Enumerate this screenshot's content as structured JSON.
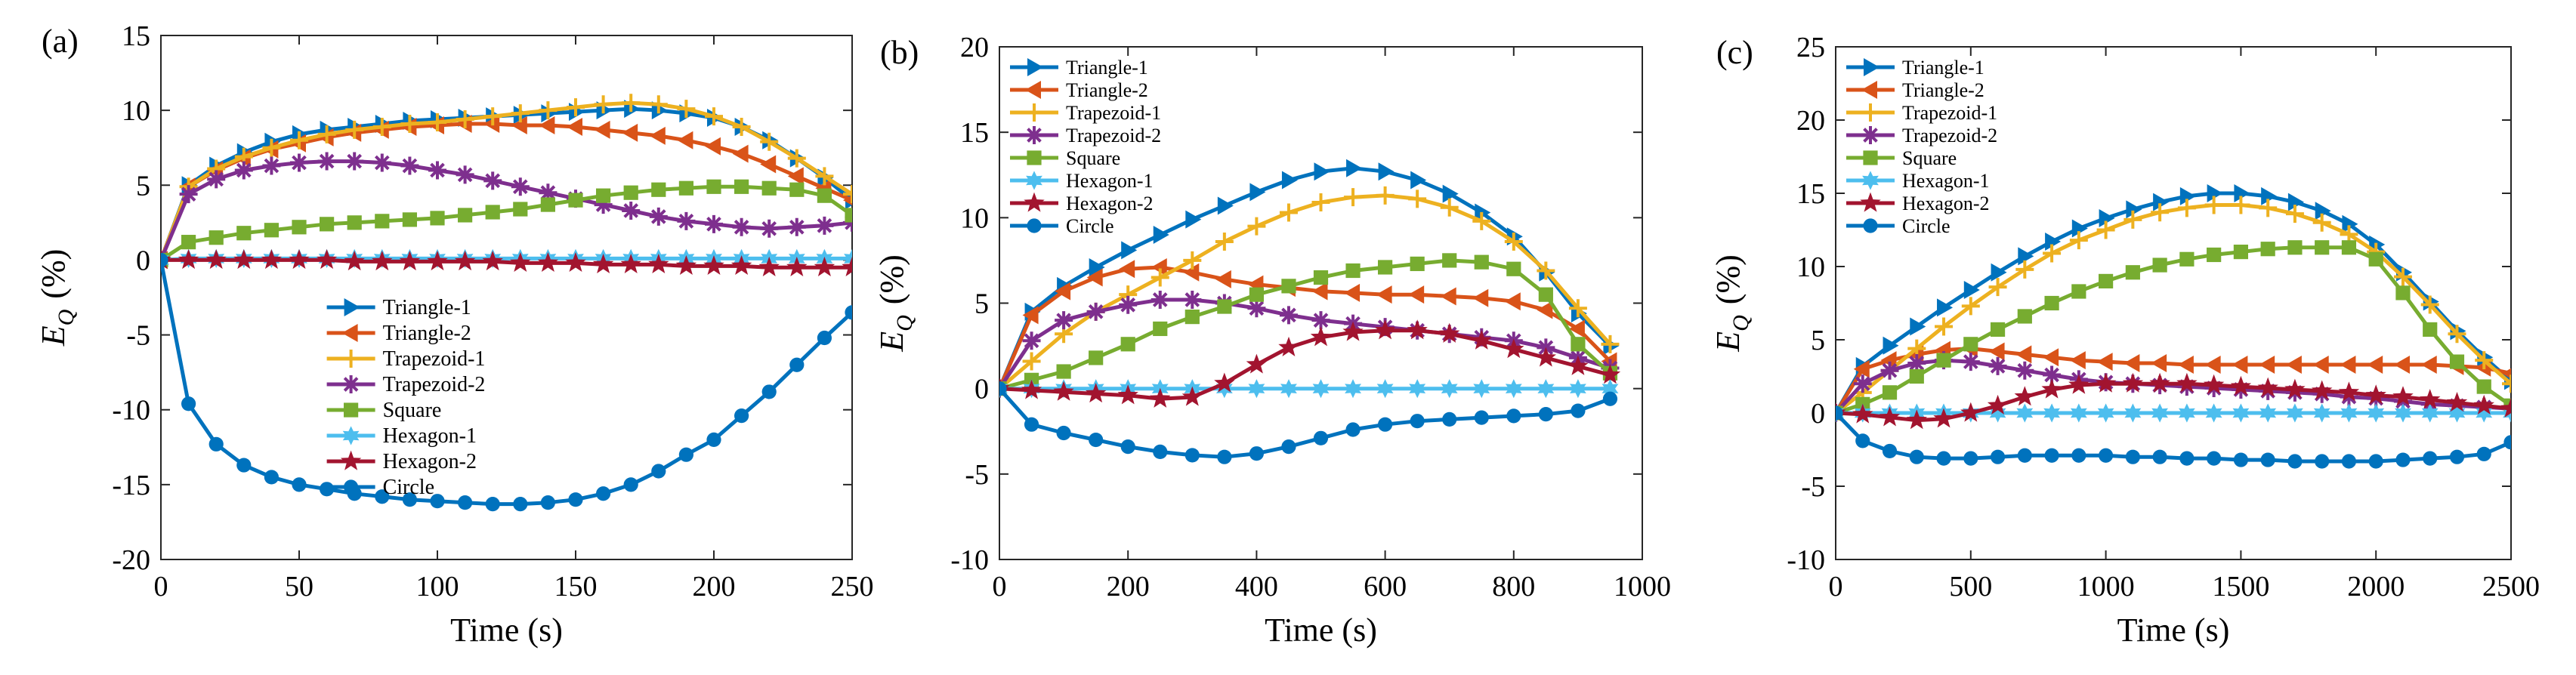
{
  "figure": {
    "series_styles": [
      {
        "name": "Triangle-1",
        "color": "#0072BD",
        "marker": "tri-right"
      },
      {
        "name": "Triangle-2",
        "color": "#D95319",
        "marker": "tri-left"
      },
      {
        "name": "Trapezoid-1",
        "color": "#EDB120",
        "marker": "plus"
      },
      {
        "name": "Trapezoid-2",
        "color": "#7E2F8E",
        "marker": "asterisk"
      },
      {
        "name": "Square",
        "color": "#77AC30",
        "marker": "square"
      },
      {
        "name": "Hexagon-1",
        "color": "#4DBEEE",
        "marker": "hexagram"
      },
      {
        "name": "Hexagon-2",
        "color": "#A2142F",
        "marker": "pentagram"
      },
      {
        "name": "Circle",
        "color": "#0072BD",
        "marker": "circle"
      }
    ]
  },
  "chart_data": [
    {
      "type": "line",
      "panel_label": "(a)",
      "xlabel": "Time (s)",
      "ylabel_main": "E",
      "ylabel_sub": "Q",
      "ylabel_unit": "(%)",
      "xlim": [
        0,
        250
      ],
      "ylim": [
        -20,
        15
      ],
      "xticks": [
        0,
        50,
        100,
        150,
        200,
        250
      ],
      "yticks": [
        -20,
        -15,
        -10,
        -5,
        0,
        5,
        10,
        15
      ],
      "legend_position": "center",
      "x": [
        0,
        10,
        20,
        30,
        40,
        50,
        60,
        70,
        80,
        90,
        100,
        110,
        120,
        130,
        140,
        150,
        160,
        170,
        180,
        190,
        200,
        210,
        220,
        230,
        240,
        250
      ],
      "series": [
        {
          "name": "Triangle-1",
          "values": [
            0,
            5.0,
            6.3,
            7.2,
            7.9,
            8.4,
            8.7,
            8.9,
            9.1,
            9.3,
            9.4,
            9.5,
            9.6,
            9.7,
            9.8,
            9.9,
            10.0,
            10.1,
            10.0,
            9.8,
            9.5,
            8.9,
            8.0,
            6.8,
            5.5,
            4.0
          ]
        },
        {
          "name": "Triangle-2",
          "values": [
            0,
            4.9,
            6.0,
            6.8,
            7.4,
            7.8,
            8.2,
            8.5,
            8.7,
            8.9,
            9.0,
            9.1,
            9.1,
            9.0,
            9.0,
            8.9,
            8.7,
            8.5,
            8.3,
            8.0,
            7.6,
            7.1,
            6.4,
            5.6,
            4.8,
            4.0
          ]
        },
        {
          "name": "Trapezoid-1",
          "values": [
            0,
            4.9,
            6.1,
            6.9,
            7.5,
            8.0,
            8.4,
            8.7,
            8.9,
            9.1,
            9.2,
            9.4,
            9.6,
            9.8,
            10.0,
            10.2,
            10.4,
            10.5,
            10.4,
            10.1,
            9.6,
            8.9,
            7.9,
            6.8,
            5.6,
            4.4
          ]
        },
        {
          "name": "Trapezoid-2",
          "values": [
            0,
            4.4,
            5.4,
            6.0,
            6.3,
            6.5,
            6.6,
            6.6,
            6.5,
            6.3,
            6.0,
            5.7,
            5.3,
            4.9,
            4.5,
            4.1,
            3.7,
            3.3,
            2.9,
            2.6,
            2.4,
            2.2,
            2.1,
            2.2,
            2.3,
            2.5
          ]
        },
        {
          "name": "Square",
          "values": [
            0,
            1.2,
            1.5,
            1.8,
            2.0,
            2.2,
            2.4,
            2.5,
            2.6,
            2.7,
            2.8,
            3.0,
            3.2,
            3.4,
            3.7,
            4.0,
            4.3,
            4.5,
            4.7,
            4.8,
            4.9,
            4.9,
            4.8,
            4.7,
            4.3,
            3.0
          ]
        },
        {
          "name": "Hexagon-1",
          "values": [
            0,
            0.1,
            0.1,
            0.1,
            0.1,
            0.1,
            0.1,
            0.1,
            0.1,
            0.1,
            0.1,
            0.1,
            0.1,
            0.1,
            0.1,
            0.1,
            0.1,
            0.1,
            0.1,
            0.1,
            0.1,
            0.1,
            0.1,
            0.1,
            0.1,
            0.1
          ]
        },
        {
          "name": "Hexagon-2",
          "values": [
            0,
            0,
            0,
            0,
            0,
            0,
            0,
            -0.1,
            -0.1,
            -0.1,
            -0.1,
            -0.1,
            -0.1,
            -0.2,
            -0.2,
            -0.2,
            -0.3,
            -0.3,
            -0.3,
            -0.4,
            -0.4,
            -0.4,
            -0.5,
            -0.5,
            -0.5,
            -0.5
          ]
        },
        {
          "name": "Circle",
          "values": [
            0,
            -9.6,
            -12.3,
            -13.7,
            -14.5,
            -15.0,
            -15.3,
            -15.6,
            -15.8,
            -16.0,
            -16.1,
            -16.2,
            -16.3,
            -16.3,
            -16.2,
            -16.0,
            -15.6,
            -15.0,
            -14.1,
            -13.0,
            -12.0,
            -10.4,
            -8.8,
            -7.0,
            -5.2,
            -3.5
          ]
        }
      ]
    },
    {
      "type": "line",
      "panel_label": "(b)",
      "xlabel": "Time (s)",
      "ylabel_main": "E",
      "ylabel_sub": "Q",
      "ylabel_unit": "(%)",
      "xlim": [
        0,
        1000
      ],
      "ylim": [
        -10,
        20
      ],
      "xticks": [
        0,
        200,
        400,
        600,
        800,
        1000
      ],
      "yticks": [
        -10,
        -5,
        0,
        5,
        10,
        15,
        20
      ],
      "legend_position": "top-left",
      "x": [
        0,
        50,
        100,
        150,
        200,
        250,
        300,
        350,
        400,
        450,
        500,
        550,
        600,
        650,
        700,
        750,
        800,
        850,
        900,
        950
      ],
      "series": [
        {
          "name": "Triangle-1",
          "values": [
            0,
            4.5,
            6.0,
            7.1,
            8.1,
            9.0,
            9.9,
            10.7,
            11.5,
            12.2,
            12.7,
            12.9,
            12.7,
            12.2,
            11.4,
            10.3,
            8.9,
            6.8,
            4.4,
            2.5
          ]
        },
        {
          "name": "Triangle-2",
          "values": [
            0,
            4.3,
            5.7,
            6.5,
            7.0,
            7.1,
            6.8,
            6.4,
            6.1,
            5.9,
            5.7,
            5.6,
            5.5,
            5.5,
            5.4,
            5.3,
            5.1,
            4.6,
            3.5,
            1.6
          ]
        },
        {
          "name": "Trapezoid-1",
          "values": [
            0,
            1.6,
            3.2,
            4.5,
            5.5,
            6.5,
            7.5,
            8.6,
            9.5,
            10.3,
            10.9,
            11.2,
            11.3,
            11.1,
            10.6,
            9.8,
            8.6,
            6.9,
            4.7,
            2.6
          ]
        },
        {
          "name": "Trapezoid-2",
          "values": [
            0,
            2.8,
            4.0,
            4.5,
            4.9,
            5.2,
            5.2,
            5.0,
            4.7,
            4.3,
            4.0,
            3.8,
            3.6,
            3.4,
            3.2,
            3.0,
            2.8,
            2.4,
            1.8,
            1.2
          ]
        },
        {
          "name": "Square",
          "values": [
            0,
            0.5,
            1.0,
            1.8,
            2.6,
            3.5,
            4.2,
            4.8,
            5.5,
            6.0,
            6.5,
            6.9,
            7.1,
            7.3,
            7.5,
            7.4,
            7.0,
            5.5,
            2.6,
            0.9
          ]
        },
        {
          "name": "Hexagon-1",
          "values": [
            0,
            0,
            0,
            0,
            0,
            0,
            0,
            0,
            0,
            0,
            0,
            0,
            0,
            0,
            0,
            0,
            0,
            0,
            0,
            0
          ]
        },
        {
          "name": "Hexagon-2",
          "values": [
            0,
            -0.1,
            -0.2,
            -0.3,
            -0.4,
            -0.6,
            -0.5,
            0.3,
            1.4,
            2.4,
            3.0,
            3.3,
            3.4,
            3.4,
            3.2,
            2.8,
            2.3,
            1.8,
            1.3,
            0.8
          ]
        },
        {
          "name": "Circle",
          "values": [
            0,
            -2.1,
            -2.6,
            -3.0,
            -3.4,
            -3.7,
            -3.9,
            -4.0,
            -3.8,
            -3.4,
            -2.9,
            -2.4,
            -2.1,
            -1.9,
            -1.8,
            -1.7,
            -1.6,
            -1.5,
            -1.3,
            -0.6
          ]
        }
      ]
    },
    {
      "type": "line",
      "panel_label": "(c)",
      "xlabel": "Time (s)",
      "ylabel_main": "E",
      "ylabel_sub": "Q",
      "ylabel_unit": "(%)",
      "xlim": [
        0,
        2500
      ],
      "ylim": [
        -10,
        25
      ],
      "xticks": [
        0,
        500,
        1000,
        1500,
        2000,
        2500
      ],
      "yticks": [
        -10,
        -5,
        0,
        5,
        10,
        15,
        20,
        25
      ],
      "legend_position": "top-left",
      "x": [
        0,
        100,
        200,
        300,
        400,
        500,
        600,
        700,
        800,
        900,
        1000,
        1100,
        1200,
        1300,
        1400,
        1500,
        1600,
        1700,
        1800,
        1900,
        2000,
        2100,
        2200,
        2300,
        2400,
        2500
      ],
      "series": [
        {
          "name": "Triangle-1",
          "values": [
            0,
            3.2,
            4.6,
            5.9,
            7.2,
            8.4,
            9.6,
            10.7,
            11.7,
            12.6,
            13.3,
            13.9,
            14.4,
            14.8,
            15.0,
            15.0,
            14.8,
            14.4,
            13.8,
            12.9,
            11.5,
            9.6,
            7.6,
            5.6,
            3.8,
            2.2
          ]
        },
        {
          "name": "Triangle-2",
          "values": [
            0,
            3.0,
            3.6,
            4.0,
            4.3,
            4.4,
            4.2,
            4.0,
            3.8,
            3.6,
            3.5,
            3.4,
            3.4,
            3.3,
            3.3,
            3.3,
            3.3,
            3.3,
            3.3,
            3.3,
            3.3,
            3.3,
            3.3,
            3.2,
            3.1,
            2.7
          ]
        },
        {
          "name": "Trapezoid-1",
          "values": [
            0,
            1.4,
            2.9,
            4.4,
            5.9,
            7.3,
            8.6,
            9.8,
            10.9,
            11.8,
            12.5,
            13.2,
            13.7,
            14.0,
            14.2,
            14.2,
            14.0,
            13.6,
            13.0,
            12.2,
            11.0,
            9.3,
            7.4,
            5.4,
            3.6,
            2.0
          ]
        },
        {
          "name": "Trapezoid-2",
          "values": [
            0,
            2.0,
            2.9,
            3.4,
            3.6,
            3.5,
            3.2,
            2.9,
            2.6,
            2.3,
            2.1,
            2.0,
            1.9,
            1.8,
            1.7,
            1.6,
            1.5,
            1.4,
            1.3,
            1.1,
            1.0,
            0.8,
            0.6,
            0.5,
            0.4,
            0.3
          ]
        },
        {
          "name": "Square",
          "values": [
            0,
            0.6,
            1.4,
            2.5,
            3.6,
            4.7,
            5.7,
            6.6,
            7.5,
            8.3,
            9.0,
            9.6,
            10.1,
            10.5,
            10.8,
            11.0,
            11.2,
            11.3,
            11.3,
            11.3,
            10.5,
            8.2,
            5.7,
            3.5,
            1.8,
            0.5
          ]
        },
        {
          "name": "Hexagon-1",
          "values": [
            0,
            0,
            0,
            0,
            0,
            0,
            0,
            0,
            0,
            0,
            0,
            0,
            0,
            0,
            0,
            0,
            0,
            0,
            0,
            0,
            0,
            0,
            0,
            0,
            0,
            0
          ]
        },
        {
          "name": "Hexagon-2",
          "values": [
            0,
            -0.1,
            -0.3,
            -0.5,
            -0.4,
            0,
            0.5,
            1.1,
            1.6,
            1.9,
            2.0,
            2.0,
            2.0,
            2.0,
            1.9,
            1.8,
            1.7,
            1.6,
            1.5,
            1.4,
            1.2,
            1.1,
            0.9,
            0.7,
            0.5,
            0.3
          ]
        },
        {
          "name": "Circle",
          "values": [
            0,
            -1.9,
            -2.6,
            -3.0,
            -3.1,
            -3.1,
            -3.0,
            -2.9,
            -2.9,
            -2.9,
            -2.9,
            -3.0,
            -3.0,
            -3.1,
            -3.1,
            -3.2,
            -3.2,
            -3.3,
            -3.3,
            -3.3,
            -3.3,
            -3.2,
            -3.1,
            -3.0,
            -2.8,
            -2.0
          ]
        }
      ]
    }
  ]
}
